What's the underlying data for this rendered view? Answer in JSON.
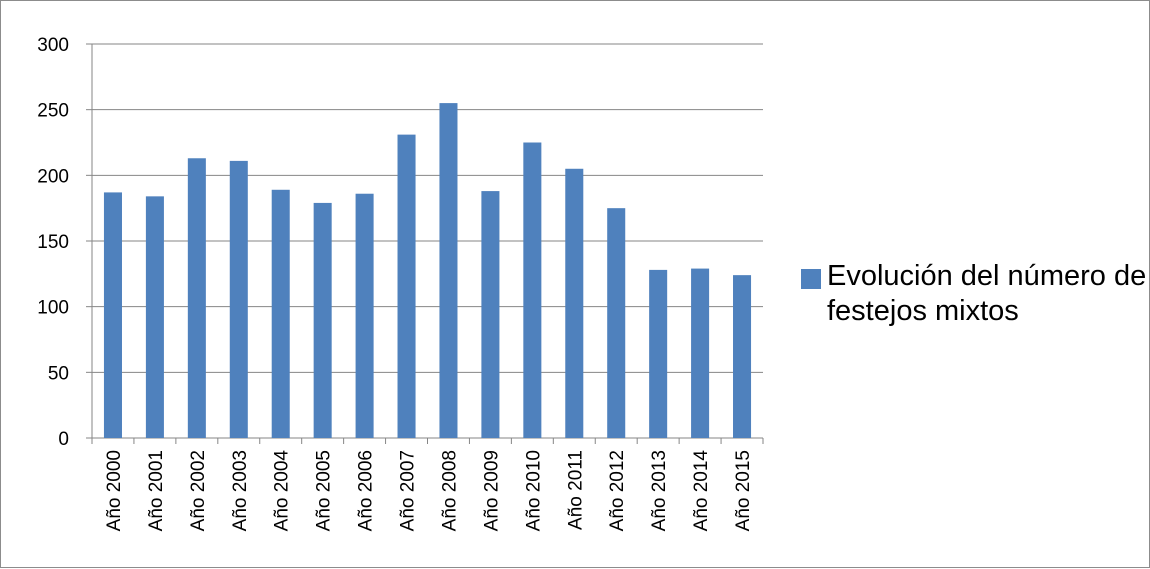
{
  "chart_data": {
    "type": "bar",
    "categories": [
      "Año 2000",
      "Año 2001",
      "Año 2002",
      "Año 2003",
      "Año 2004",
      "Año 2005",
      "Año 2006",
      "Año 2007",
      "Año 2008",
      "Año 2009",
      "Año 2010",
      "Año 2011",
      "Año 2012",
      "Año 2013",
      "Año 2014",
      "Año 2015"
    ],
    "series": [
      {
        "name": "Evolución del número de festejos mixtos",
        "values": [
          187,
          184,
          213,
          211,
          189,
          179,
          186,
          231,
          255,
          188,
          225,
          205,
          175,
          128,
          129,
          124
        ],
        "color": "#4f81bd"
      }
    ],
    "ylim": [
      0,
      300
    ],
    "yticks": [
      0,
      50,
      100,
      150,
      200,
      250,
      300
    ],
    "grid": true,
    "legend_position": "right"
  }
}
